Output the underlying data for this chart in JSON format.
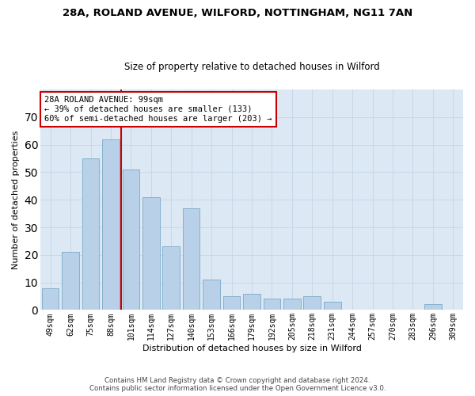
{
  "title_line1": "28A, ROLAND AVENUE, WILFORD, NOTTINGHAM, NG11 7AN",
  "title_line2": "Size of property relative to detached houses in Wilford",
  "xlabel": "Distribution of detached houses by size in Wilford",
  "ylabel": "Number of detached properties",
  "categories": [
    "49sqm",
    "62sqm",
    "75sqm",
    "88sqm",
    "101sqm",
    "114sqm",
    "127sqm",
    "140sqm",
    "153sqm",
    "166sqm",
    "179sqm",
    "192sqm",
    "205sqm",
    "218sqm",
    "231sqm",
    "244sqm",
    "257sqm",
    "270sqm",
    "283sqm",
    "296sqm",
    "309sqm"
  ],
  "values": [
    8,
    21,
    55,
    62,
    51,
    41,
    23,
    37,
    11,
    5,
    6,
    4,
    4,
    5,
    3,
    0,
    0,
    0,
    0,
    2,
    0
  ],
  "bar_color": "#b8d0e8",
  "bar_edge_color": "#7aaac8",
  "grid_color": "#c8d8e8",
  "bg_color": "#dce8f4",
  "vline_color": "#cc0000",
  "annotation_text": "28A ROLAND AVENUE: 99sqm\n← 39% of detached houses are smaller (133)\n60% of semi-detached houses are larger (203) →",
  "annotation_box_color": "#ffffff",
  "annotation_box_edge": "#cc0000",
  "footer_line1": "Contains HM Land Registry data © Crown copyright and database right 2024.",
  "footer_line2": "Contains public sector information licensed under the Open Government Licence v3.0.",
  "ylim": [
    0,
    80
  ],
  "yticks": [
    0,
    10,
    20,
    30,
    40,
    50,
    60,
    70,
    80
  ]
}
